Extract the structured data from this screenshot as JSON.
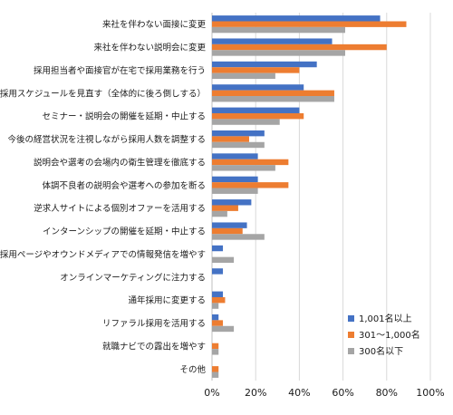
{
  "chart_data": {
    "type": "bar",
    "orientation": "horizontal",
    "categories": [
      "来社を伴わない面接に変更",
      "来社を伴わない説明会に変更",
      "採用担当者や面接官が在宅で採用業務を行う",
      "採用スケジュールを見直す（全体的に後ろ倒しする）",
      "セミナー・説明会の開催を延期・中止する",
      "今後の経営状況を注視しながら採用人数を調整する",
      "説明会や選考の会場内の衛生管理を徹底する",
      "体調不良者の説明会や選考への参加を断る",
      "逆求人サイトによる個別オファーを活用する",
      "インターンシップの開催を延期・中止する",
      "自社採用ページやオウンドメディアでの情報発信を増やす",
      "オンラインマーケティングに注力する",
      "通年採用に変更する",
      "リファラル採用を活用する",
      "就職ナビでの露出を増やす",
      "その他"
    ],
    "series": [
      {
        "name": "1,001名以上",
        "color": "#4472c4",
        "values": [
          77,
          55,
          48,
          42,
          40,
          24,
          21,
          21,
          18,
          16,
          5,
          5,
          5,
          3,
          0,
          0
        ]
      },
      {
        "name": "301～1,000名",
        "color": "#ed7d31",
        "values": [
          89,
          80,
          40,
          56,
          42,
          17,
          35,
          35,
          12,
          14,
          0,
          0,
          6,
          5,
          3,
          3
        ]
      },
      {
        "name": "300名以下",
        "color": "#a5a5a5",
        "values": [
          61,
          61,
          29,
          56,
          31,
          24,
          29,
          21,
          7,
          24,
          10,
          0,
          3,
          10,
          3,
          3
        ]
      }
    ],
    "xlim": [
      0,
      100
    ],
    "xticks": [
      0,
      20,
      40,
      60,
      80,
      100
    ],
    "tick_suffix": "%",
    "grid": "vertical",
    "legend": "bottom-right"
  }
}
